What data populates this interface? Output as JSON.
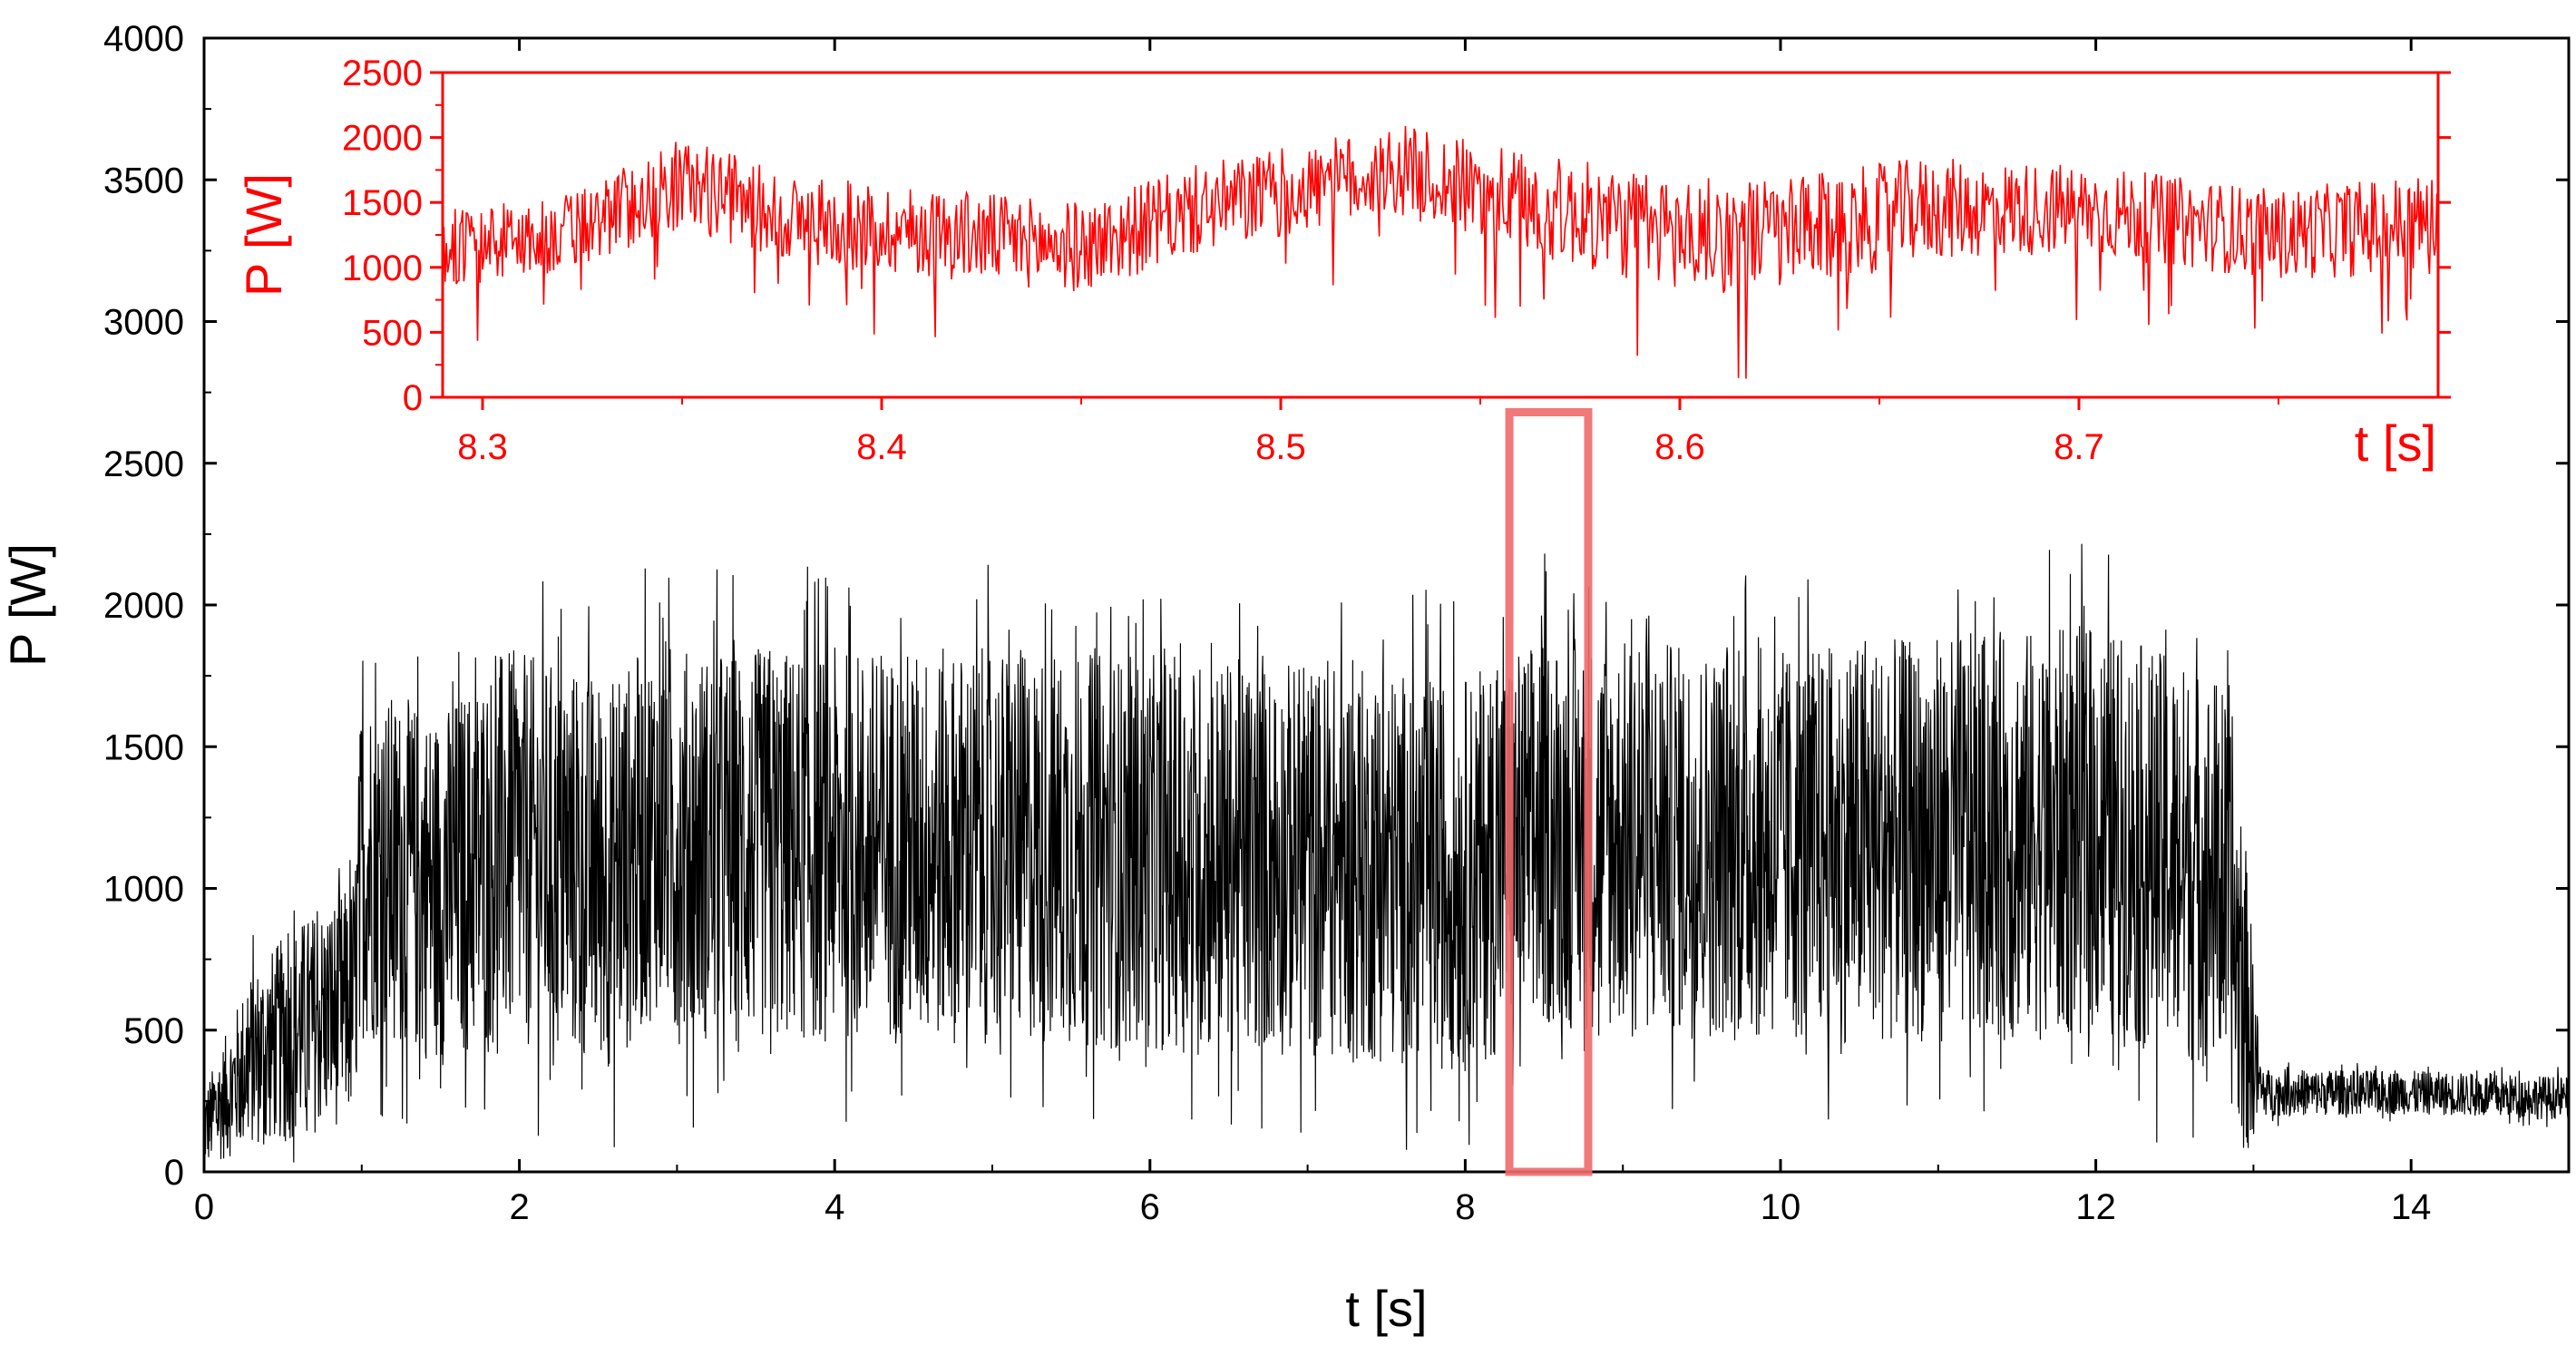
{
  "chart_data": [
    {
      "type": "line",
      "role": "main",
      "xlabel": "t [s]",
      "ylabel": "P [W]",
      "xlim": [
        0,
        15
      ],
      "ylim": [
        0,
        4000
      ],
      "xticks": [
        0,
        2,
        4,
        6,
        8,
        10,
        12,
        14
      ],
      "yticks": [
        0,
        500,
        1000,
        1500,
        2000,
        2500,
        3000,
        3500,
        4000
      ],
      "series_color": "#000000",
      "grid": false,
      "highlight_box": {
        "x": [
          8.28,
          8.78
        ],
        "y": [
          0,
          2680
        ],
        "color": "#f06a6a"
      },
      "envelope": {
        "t": [
          0,
          0.3,
          0.6,
          0.95,
          1.0,
          1.5,
          1.9,
          2.6,
          2.9,
          3.0,
          5.0,
          7.0,
          8.0,
          8.5,
          10.0,
          12.0,
          12.8,
          12.95,
          13.05,
          14.0,
          15.0
        ],
        "mean": [
          150,
          400,
          500,
          600,
          1100,
          1000,
          1150,
          1050,
          1250,
          1150,
          1150,
          1100,
          1050,
          1200,
          1150,
          1200,
          1050,
          600,
          280,
          280,
          260
        ],
        "spread": [
          200,
          450,
          550,
          600,
          900,
          900,
          1000,
          1000,
          950,
          1000,
          1000,
          1000,
          1000,
          1000,
          1000,
          1050,
          1000,
          800,
          120,
          110,
          110
        ],
        "peak_max": 2310
      }
    },
    {
      "type": "line",
      "role": "inset",
      "xlabel": "t [s]",
      "ylabel": "P [W]",
      "xlim": [
        8.29,
        8.79
      ],
      "ylim": [
        0,
        2500
      ],
      "xticks": [
        8.3,
        8.4,
        8.5,
        8.6,
        8.7
      ],
      "yticks": [
        0,
        500,
        1000,
        1500,
        2000,
        2500
      ],
      "series_color": "#ff0000",
      "axis_color": "#ff0000",
      "envelope": {
        "t": [
          8.29,
          8.32,
          8.35,
          8.38,
          8.42,
          8.45,
          8.48,
          8.53,
          8.56,
          8.6,
          8.63,
          8.66,
          8.7,
          8.75,
          8.79
        ],
        "mean": [
          1150,
          1250,
          1650,
          1350,
          1250,
          1150,
          1450,
          1750,
          1500,
          1250,
          1250,
          1450,
          1450,
          1250,
          1350
        ],
        "spread": [
          300,
          300,
          350,
          350,
          350,
          350,
          350,
          350,
          400,
          450,
          450,
          400,
          350,
          350,
          400
        ]
      }
    }
  ]
}
